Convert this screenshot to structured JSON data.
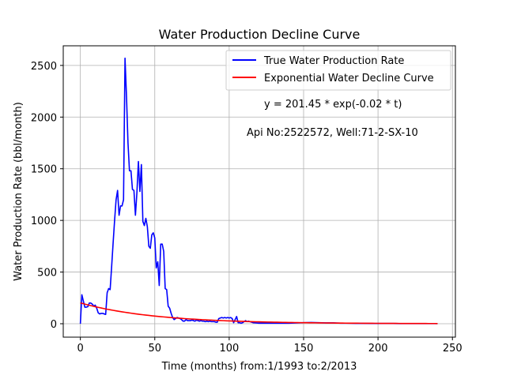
{
  "chart_data": {
    "type": "line",
    "title": "Water Production Decline Curve",
    "xlabel": "Time (months) from:1/1993 to:2/2013",
    "ylabel": "Water Production Rate (bbl/month)",
    "xlim": [
      -11.5,
      252
    ],
    "ylim": [
      -130,
      2690
    ],
    "xticks": [
      0,
      50,
      100,
      150,
      200,
      250
    ],
    "yticks": [
      0,
      500,
      1000,
      1500,
      2000,
      2500
    ],
    "grid": true,
    "legend_placement": "top-right",
    "annotations": [
      "y = 201.45 * exp(-0.02 * t)",
      "Api No:2522572, Well:71-2-SX-10"
    ],
    "series": [
      {
        "name": "True Water Production Rate",
        "color": "#0000ff",
        "points": [
          [
            0,
            0
          ],
          [
            1,
            280
          ],
          [
            2,
            220
          ],
          [
            3,
            160
          ],
          [
            4,
            160
          ],
          [
            5,
            165
          ],
          [
            6,
            200
          ],
          [
            7,
            200
          ],
          [
            8,
            190
          ],
          [
            9,
            170
          ],
          [
            10,
            180
          ],
          [
            11,
            150
          ],
          [
            12,
            105
          ],
          [
            13,
            95
          ],
          [
            14,
            100
          ],
          [
            15,
            100
          ],
          [
            16,
            95
          ],
          [
            17,
            90
          ],
          [
            18,
            300
          ],
          [
            19,
            340
          ],
          [
            20,
            330
          ],
          [
            21,
            550
          ],
          [
            22,
            780
          ],
          [
            23,
            1000
          ],
          [
            24,
            1200
          ],
          [
            25,
            1290
          ],
          [
            26,
            1050
          ],
          [
            27,
            1140
          ],
          [
            28,
            1140
          ],
          [
            29,
            1200
          ],
          [
            30,
            2570
          ],
          [
            31,
            2200
          ],
          [
            32,
            1750
          ],
          [
            33,
            1480
          ],
          [
            34,
            1480
          ],
          [
            35,
            1300
          ],
          [
            36,
            1290
          ],
          [
            37,
            1050
          ],
          [
            38,
            1270
          ],
          [
            39,
            1570
          ],
          [
            40,
            1280
          ],
          [
            41,
            1540
          ],
          [
            42,
            990
          ],
          [
            43,
            950
          ],
          [
            44,
            1020
          ],
          [
            45,
            940
          ],
          [
            46,
            750
          ],
          [
            47,
            730
          ],
          [
            48,
            860
          ],
          [
            49,
            880
          ],
          [
            50,
            830
          ],
          [
            51,
            540
          ],
          [
            52,
            600
          ],
          [
            53,
            370
          ],
          [
            54,
            770
          ],
          [
            55,
            770
          ],
          [
            56,
            700
          ],
          [
            57,
            340
          ],
          [
            58,
            330
          ],
          [
            59,
            170
          ],
          [
            60,
            150
          ],
          [
            61,
            100
          ],
          [
            62,
            60
          ],
          [
            63,
            40
          ],
          [
            64,
            50
          ],
          [
            65,
            60
          ],
          [
            66,
            55
          ],
          [
            67,
            50
          ],
          [
            68,
            40
          ],
          [
            69,
            25
          ],
          [
            70,
            25
          ],
          [
            71,
            40
          ],
          [
            72,
            30
          ],
          [
            73,
            30
          ],
          [
            74,
            30
          ],
          [
            75,
            35
          ],
          [
            76,
            30
          ],
          [
            77,
            25
          ],
          [
            78,
            35
          ],
          [
            79,
            30
          ],
          [
            80,
            25
          ],
          [
            81,
            30
          ],
          [
            82,
            25
          ],
          [
            83,
            25
          ],
          [
            84,
            20
          ],
          [
            85,
            25
          ],
          [
            86,
            20
          ],
          [
            87,
            25
          ],
          [
            88,
            20
          ],
          [
            89,
            20
          ],
          [
            90,
            20
          ],
          [
            91,
            15
          ],
          [
            92,
            15
          ],
          [
            93,
            50
          ],
          [
            94,
            55
          ],
          [
            95,
            60
          ],
          [
            96,
            55
          ],
          [
            97,
            60
          ],
          [
            98,
            55
          ],
          [
            99,
            60
          ],
          [
            100,
            55
          ],
          [
            101,
            60
          ],
          [
            102,
            50
          ],
          [
            103,
            10
          ],
          [
            104,
            40
          ],
          [
            105,
            70
          ],
          [
            106,
            10
          ],
          [
            107,
            10
          ],
          [
            108,
            5
          ],
          [
            109,
            10
          ],
          [
            110,
            20
          ],
          [
            111,
            30
          ],
          [
            112,
            20
          ],
          [
            113,
            25
          ],
          [
            114,
            20
          ],
          [
            115,
            15
          ],
          [
            116,
            10
          ],
          [
            118,
            8
          ],
          [
            120,
            5
          ],
          [
            125,
            5
          ],
          [
            130,
            5
          ],
          [
            135,
            5
          ],
          [
            140,
            5
          ],
          [
            145,
            8
          ],
          [
            150,
            10
          ],
          [
            155,
            12
          ],
          [
            160,
            10
          ],
          [
            165,
            8
          ],
          [
            170,
            8
          ],
          [
            175,
            5
          ],
          [
            180,
            5
          ],
          [
            185,
            3
          ],
          [
            190,
            3
          ],
          [
            195,
            2
          ],
          [
            200,
            2
          ],
          [
            205,
            2
          ],
          [
            210,
            2
          ],
          [
            215,
            1
          ],
          [
            220,
            1
          ],
          [
            225,
            1
          ],
          [
            230,
            1
          ],
          [
            235,
            1
          ],
          [
            240,
            1
          ]
        ]
      },
      {
        "name": "Exponential Water Decline Curve",
        "color": "#ff0000",
        "equation": {
          "a": 201.45,
          "b": -0.02
        },
        "x_range": [
          0,
          240
        ]
      }
    ]
  }
}
